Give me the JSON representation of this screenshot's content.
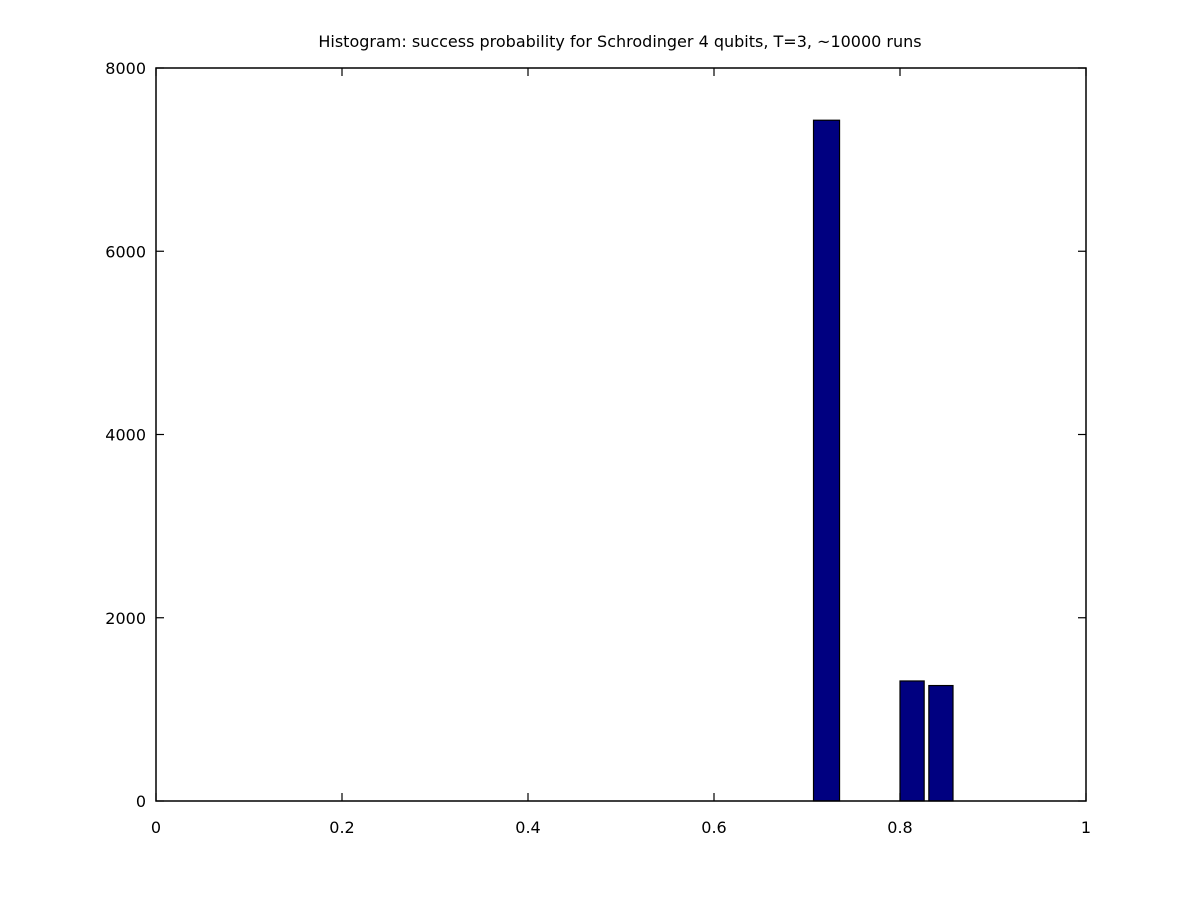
{
  "chart_data": {
    "type": "bar",
    "title": "Histogram: success probability for Schrodinger 4 qubits, T=3, ~10000 runs",
    "xlabel": "",
    "ylabel": "",
    "xlim": [
      0,
      1
    ],
    "ylim": [
      0,
      8000
    ],
    "xticks": [
      "0",
      "0.2",
      "0.4",
      "0.6",
      "0.8",
      "1"
    ],
    "xtick_values": [
      0,
      0.2,
      0.4,
      0.6,
      0.8,
      1
    ],
    "yticks": [
      "0",
      "2000",
      "4000",
      "6000",
      "8000"
    ],
    "ytick_values": [
      0,
      2000,
      4000,
      6000,
      8000
    ],
    "grid": false,
    "bar_color": "#000080",
    "bars": [
      {
        "x0": 0.707,
        "x1": 0.735,
        "value": 7430
      },
      {
        "x0": 0.8,
        "x1": 0.826,
        "value": 1310
      },
      {
        "x0": 0.831,
        "x1": 0.857,
        "value": 1260
      }
    ]
  }
}
